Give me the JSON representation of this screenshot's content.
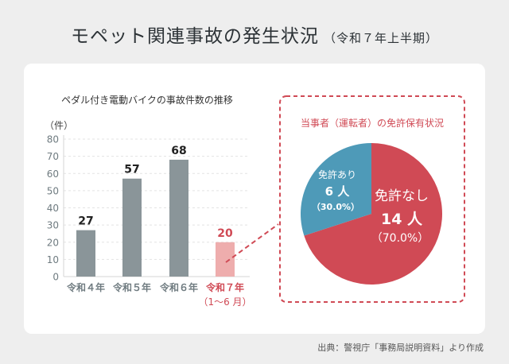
{
  "header": {
    "title": "モペット関連事故の発生状況",
    "subtitle": "（令和７年上半期）"
  },
  "source": "出典：警視庁「事務局説明資料」より作成",
  "colors": {
    "bar": "#8a9599",
    "bar_highlight": "#eeadad",
    "accent": "#d04a55",
    "blue": "#4e9ab8",
    "axis_text": "#6f7b80"
  },
  "chart_data": [
    {
      "type": "bar",
      "title": "ペダル付き電動バイクの事故件数の推移",
      "ylabel": "（件）",
      "ylim": [
        0,
        80
      ],
      "yticks": [
        0,
        10,
        20,
        30,
        40,
        50,
        60,
        70,
        80
      ],
      "grid": true,
      "categories": [
        "令和４年",
        "令和５年",
        "令和６年",
        "令和７年"
      ],
      "category_notes": [
        "",
        "",
        "",
        "（1〜6 月）"
      ],
      "values": [
        27,
        57,
        68,
        20
      ],
      "highlight_index": 3
    },
    {
      "type": "pie",
      "title": "当事者（運転者）の免許保有状況",
      "slices": [
        {
          "label": "免許なし",
          "count": "14 人",
          "percent": "（70.0%）",
          "value": 70.0,
          "color": "#d04a55"
        },
        {
          "label": "免許あり",
          "count": "6 人",
          "percent": "（30.0%）",
          "value": 30.0,
          "color": "#4e9ab8"
        }
      ]
    }
  ]
}
